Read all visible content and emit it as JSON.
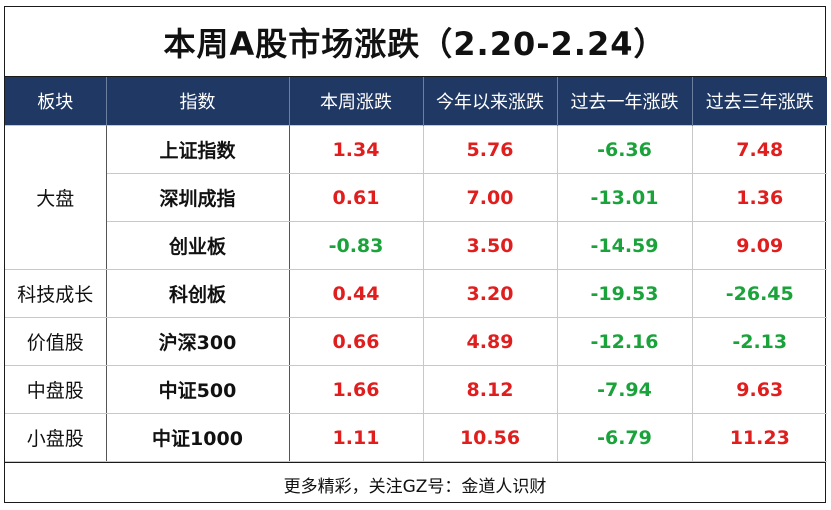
{
  "title": "本周A股市场涨跌（2.20-2.24）",
  "headers": [
    "板块",
    "指数",
    "本周涨跌",
    "今年以来涨跌",
    "过去一年涨跌",
    "过去三年涨跌"
  ],
  "groups": {
    "large_cap": "大盘",
    "tech_growth": "科技成长",
    "value": "价值股",
    "mid_cap": "中盘股",
    "small_cap": "小盘股"
  },
  "rows": [
    {
      "index": "上证指数",
      "week": "1.34",
      "ytd": "5.76",
      "one_year": "-6.36",
      "three_year": "7.48"
    },
    {
      "index": "深圳成指",
      "week": "0.61",
      "ytd": "7.00",
      "one_year": "-13.01",
      "three_year": "1.36"
    },
    {
      "index": "创业板",
      "week": "-0.83",
      "ytd": "3.50",
      "one_year": "-14.59",
      "three_year": "9.09"
    },
    {
      "index": "科创板",
      "week": "0.44",
      "ytd": "3.20",
      "one_year": "-19.53",
      "three_year": "-26.45"
    },
    {
      "index": "沪深300",
      "week": "0.66",
      "ytd": "4.89",
      "one_year": "-12.16",
      "three_year": "-2.13"
    },
    {
      "index": "中证500",
      "week": "1.66",
      "ytd": "8.12",
      "one_year": "-7.94",
      "three_year": "9.63"
    },
    {
      "index": "中证1000",
      "week": "1.11",
      "ytd": "10.56",
      "one_year": "-6.79",
      "three_year": "11.23"
    }
  ],
  "footer": "更多精彩，关注GZ号：金道人识财",
  "colors": {
    "positive": "#e01e1e",
    "negative": "#1aa33a",
    "header_bg": "#1f3864"
  }
}
